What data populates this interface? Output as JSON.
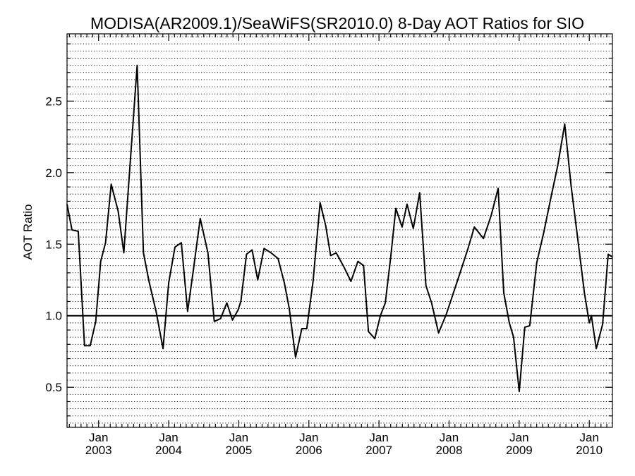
{
  "chart_data": {
    "type": "line",
    "title": "MODISA(AR2009.1)/SeaWiFS(SR2010.0) 8-Day AOT Ratios for SIO",
    "xlabel": "",
    "ylabel": "AOT Ratio",
    "xlim": [
      2002.55,
      2010.33
    ],
    "ylim": [
      0.22,
      2.97
    ],
    "yticks": [
      0.5,
      1.0,
      1.5,
      2.0,
      2.5
    ],
    "ytick_labels": [
      "0.5",
      "1.0",
      "1.5",
      "2.0",
      "2.5"
    ],
    "xticks": [
      {
        "x": 2003.0,
        "line1": "Jan",
        "line2": "2003"
      },
      {
        "x": 2004.0,
        "line1": "Jan",
        "line2": "2004"
      },
      {
        "x": 2005.0,
        "line1": "Jan",
        "line2": "2005"
      },
      {
        "x": 2006.0,
        "line1": "Jan",
        "line2": "2006"
      },
      {
        "x": 2007.0,
        "line1": "Jan",
        "line2": "2007"
      },
      {
        "x": 2008.0,
        "line1": "Jan",
        "line2": "2008"
      },
      {
        "x": 2009.0,
        "line1": "Jan",
        "line2": "2009"
      },
      {
        "x": 2010.0,
        "line1": "Jan",
        "line2": "2010"
      }
    ],
    "grid": "horizontal-dotted",
    "reference_line": 1.0,
    "series": [
      {
        "x": [
          2002.55,
          2002.62,
          2002.71,
          2002.8,
          2002.88,
          2002.96,
          2003.03,
          2003.1,
          2003.18,
          2003.28,
          2003.36,
          2003.44,
          2003.55,
          2003.64,
          2003.72,
          2003.82,
          2003.92,
          2004.0,
          2004.09,
          2004.18,
          2004.27,
          2004.35,
          2004.45,
          2004.56,
          2004.65,
          2004.74,
          2004.83,
          2004.91,
          2004.99,
          2005.03,
          2005.11,
          2005.19,
          2005.27,
          2005.36,
          2005.46,
          2005.56,
          2005.65,
          2005.72,
          2005.81,
          2005.9,
          2005.97,
          2006.06,
          2006.16,
          2006.24,
          2006.31,
          2006.39,
          2006.5,
          2006.6,
          2006.7,
          2006.78,
          2006.85,
          2006.94,
          2007.02,
          2007.09,
          2007.17,
          2007.24,
          2007.33,
          2007.4,
          2007.49,
          2007.58,
          2007.67,
          2007.75,
          2007.85,
          2007.96,
          2008.09,
          2008.19,
          2008.27,
          2008.36,
          2008.49,
          2008.6,
          2008.7,
          2008.78,
          2008.86,
          2008.92,
          2009.0,
          2009.08,
          2009.15,
          2009.25,
          2009.35,
          2009.45,
          2009.55,
          2009.65,
          2009.74,
          2009.84,
          2009.93,
          2010.0,
          2010.03,
          2010.1,
          2010.19,
          2010.27,
          2010.33
        ],
        "y": [
          1.78,
          1.6,
          1.59,
          0.79,
          0.79,
          0.96,
          1.38,
          1.51,
          1.92,
          1.73,
          1.44,
          1.99,
          2.75,
          1.44,
          1.24,
          1.03,
          0.77,
          1.23,
          1.48,
          1.51,
          1.03,
          1.31,
          1.68,
          1.44,
          0.96,
          0.98,
          1.09,
          0.97,
          1.04,
          1.1,
          1.43,
          1.46,
          1.25,
          1.47,
          1.44,
          1.4,
          1.23,
          1.05,
          0.71,
          0.91,
          0.91,
          1.24,
          1.79,
          1.63,
          1.42,
          1.44,
          1.34,
          1.24,
          1.38,
          1.35,
          0.89,
          0.84,
          1.0,
          1.09,
          1.42,
          1.75,
          1.62,
          1.78,
          1.61,
          1.86,
          1.21,
          1.09,
          0.88,
          1.01,
          1.2,
          1.35,
          1.47,
          1.62,
          1.54,
          1.7,
          1.89,
          1.16,
          0.95,
          0.85,
          0.47,
          0.92,
          0.93,
          1.37,
          1.58,
          1.82,
          2.05,
          2.34,
          1.91,
          1.52,
          1.16,
          0.95,
          1.0,
          0.77,
          0.94,
          1.43,
          1.41
        ]
      }
    ]
  }
}
